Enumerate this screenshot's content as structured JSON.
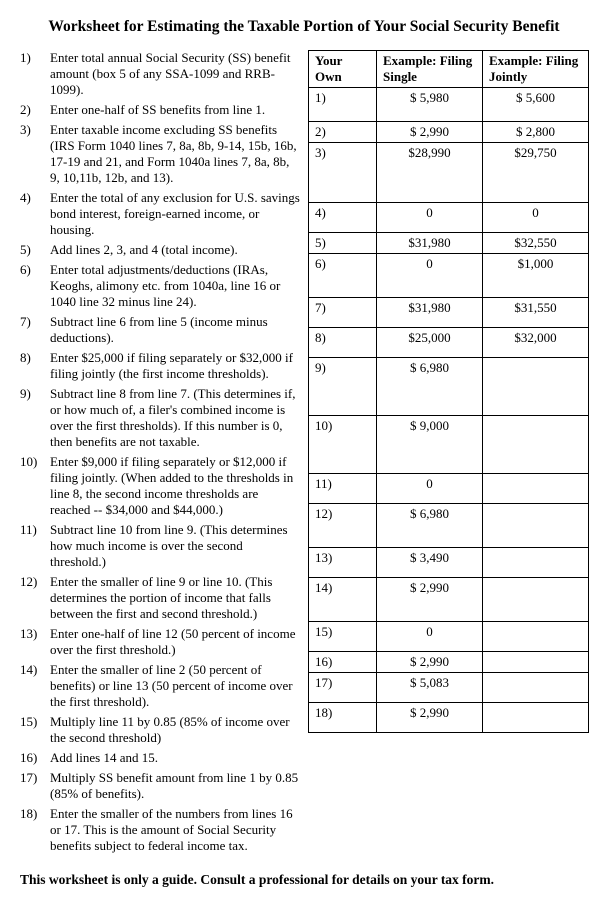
{
  "title": "Worksheet for Estimating the Taxable Portion of Your Social Security Benefit",
  "headers": {
    "own": "Your Own",
    "single": "Example: Filing Single",
    "joint": "Example: Filing Jointly"
  },
  "footer": "This worksheet is only a guide.  Consult a professional for details on your tax form.",
  "rows": [
    {
      "n": "1)",
      "text": "Enter total annual Social Security (SS) benefit amount (box 5 of any SSA-1099 and RRB-1099).",
      "lh": 28,
      "rh": 34,
      "single": "$ 5,980",
      "joint": "$ 5,600"
    },
    {
      "n": "2)",
      "text": "Enter one-half of SS benefits from line 1.",
      "lh": 16,
      "rh": 17,
      "single": "$ 2,990",
      "joint": "$ 2,800"
    },
    {
      "n": "3)",
      "text": "Enter taxable income excluding SS benefits (IRS Form 1040 lines 7, 8a, 8b, 9-14, 15b, 16b, 17-19 and 21, and Form 1040a lines 7, 8a, 8b, 9, 10,11b, 12b, and 13).",
      "lh": 58,
      "rh": 60,
      "single": "$28,990",
      "joint": "$29,750"
    },
    {
      "n": "4)",
      "text": "Enter the total of any exclusion for U.S. savings bond interest, foreign-earned income, or housing.",
      "lh": 28,
      "rh": 30,
      "single": "0",
      "joint": "0"
    },
    {
      "n": "5)",
      "text": "Add lines 2, 3, and 4 (total income).",
      "lh": 16,
      "rh": 17,
      "single": "$31,980",
      "joint": "$32,550"
    },
    {
      "n": "6)",
      "text": "Enter total adjustments/deductions (IRAs, Keoghs, alimony etc. from 1040a, line 16 or 1040 line 32 minus line 24).",
      "lh": 42,
      "rh": 44,
      "single": "0",
      "joint": "$1,000"
    },
    {
      "n": "7)",
      "text": "Subtract line 6 from line 5 (income minus deductions).",
      "lh": 28,
      "rh": 30,
      "single": "$31,980",
      "joint": "$31,550"
    },
    {
      "n": "8)",
      "text": "Enter $25,000 if filing separately or $32,000 if filing jointly (the first income thresholds).",
      "lh": 28,
      "rh": 30,
      "single": "$25,000",
      "joint": "$32,000"
    },
    {
      "n": "9)",
      "text": "Subtract line 8 from line 7.  (This determines if, or how much of, a filer's combined income is over the first thresholds).  If this number is 0, then benefits are not taxable.",
      "lh": 56,
      "rh": 58,
      "single": "$ 6,980",
      "joint": ""
    },
    {
      "n": "10)",
      "text": "Enter $9,000 if filing separately or $12,000 if filing jointly.  (When added to the thresholds in line 8, the second income thresholds are reached -- $34,000 and $44,000.)",
      "lh": 56,
      "rh": 58,
      "single": "$ 9,000",
      "joint": ""
    },
    {
      "n": "11)",
      "text": "Subtract line 10 from line 9.  (This determines how much income is over the second threshold.)",
      "lh": 28,
      "rh": 30,
      "single": "0",
      "joint": ""
    },
    {
      "n": "12)",
      "text": "Enter the smaller of line 9 or line 10.  (This determines the portion of income that falls between the first and second threshold.)",
      "lh": 42,
      "rh": 44,
      "single": "$ 6,980",
      "joint": ""
    },
    {
      "n": "13)",
      "text": "Enter one-half of line 12 (50 percent of income over the first threshold.)",
      "lh": 28,
      "rh": 30,
      "single": "$ 3,490",
      "joint": ""
    },
    {
      "n": "14)",
      "text": "Enter the smaller of line 2 (50 percent of benefits) or line 13 (50 percent of income over the first threshold).",
      "lh": 42,
      "rh": 44,
      "single": "$ 2,990",
      "joint": ""
    },
    {
      "n": "15)",
      "text": "Multiply line 11 by 0.85 (85% of income over the second threshold)",
      "lh": 28,
      "rh": 30,
      "single": "0",
      "joint": ""
    },
    {
      "n": "16)",
      "text": "Add lines 14 and 15.",
      "lh": 16,
      "rh": 17,
      "single": "$ 2,990",
      "joint": ""
    },
    {
      "n": "17)",
      "text": "Multiply SS benefit amount from line 1 by 0.85 (85% of benefits).",
      "lh": 28,
      "rh": 30,
      "single": "$ 5,083",
      "joint": ""
    },
    {
      "n": "18)",
      "text": "Enter the smaller of the numbers from lines 16 or 17.  This is the amount of Social Security benefits subject to federal income tax.",
      "lh": 42,
      "rh": 30,
      "single": "$ 2,990",
      "joint": ""
    }
  ]
}
